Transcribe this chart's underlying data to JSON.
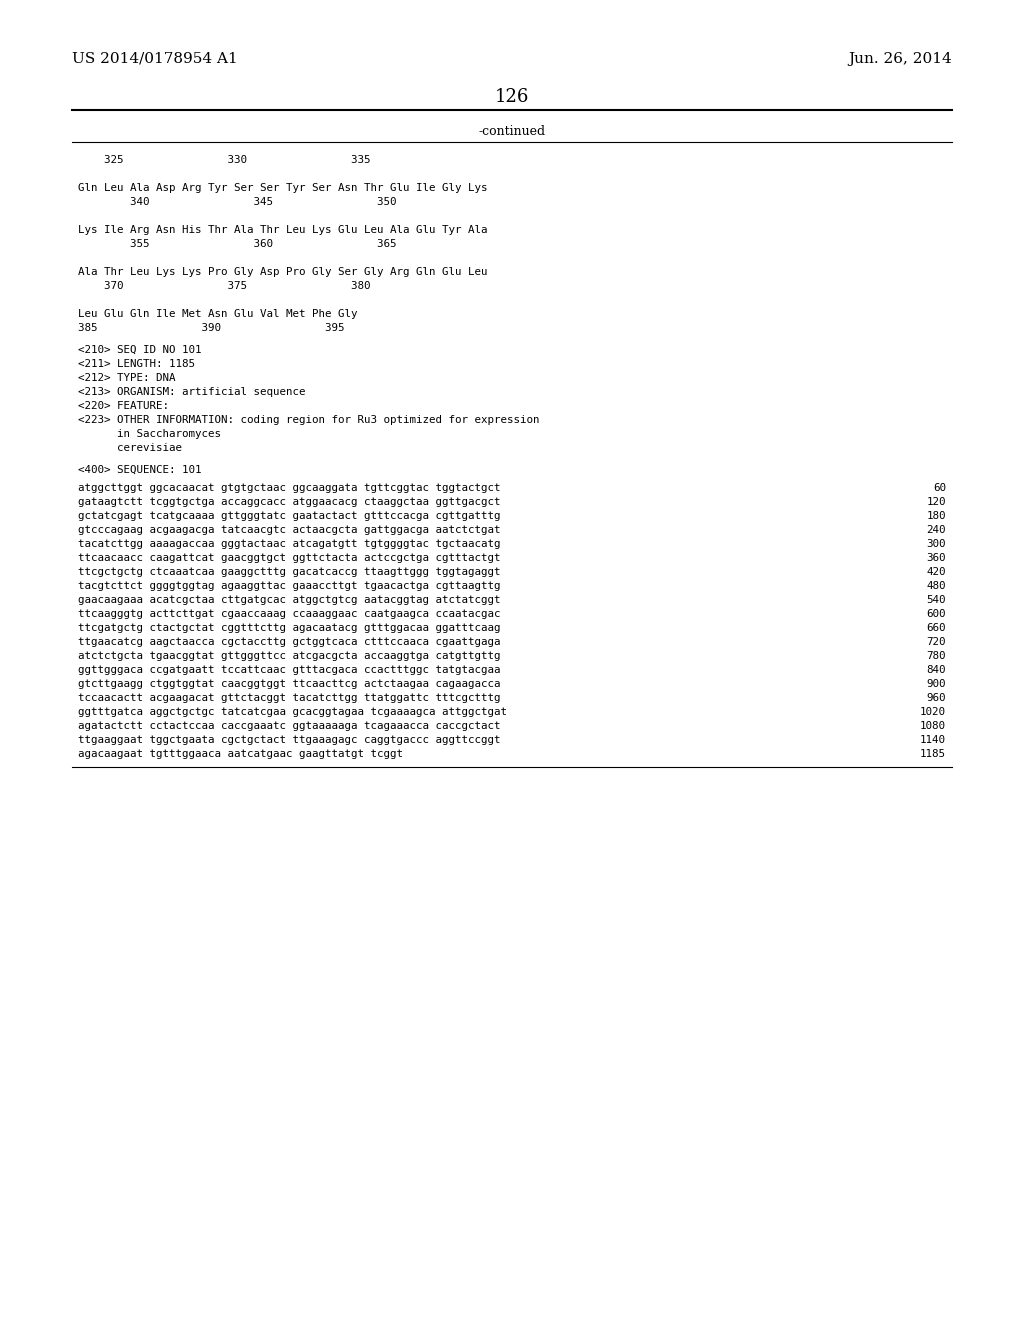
{
  "header_left": "US 2014/0178954 A1",
  "header_right": "Jun. 26, 2014",
  "page_number": "126",
  "continued_label": "-continued",
  "background_color": "#ffffff",
  "text_color": "#000000",
  "font_size_header": 11,
  "font_size_body": 9,
  "font_size_page": 13,
  "sequence_lines": [
    {
      "text": "    325                330                335",
      "indent": 0
    },
    {
      "text": "",
      "indent": 0
    },
    {
      "text": "Gln Leu Ala Asp Arg Tyr Ser Ser Tyr Ser Asn Thr Glu Ile Gly Lys",
      "indent": 0
    },
    {
      "text": "        340                345                350",
      "indent": 0
    },
    {
      "text": "",
      "indent": 0
    },
    {
      "text": "Lys Ile Arg Asn His Thr Ala Thr Leu Lys Glu Leu Ala Glu Tyr Ala",
      "indent": 0
    },
    {
      "text": "        355                360                365",
      "indent": 0
    },
    {
      "text": "",
      "indent": 0
    },
    {
      "text": "Ala Thr Leu Lys Lys Pro Gly Asp Pro Gly Ser Gly Arg Gln Glu Leu",
      "indent": 0
    },
    {
      "text": "    370                375                380",
      "indent": 0
    },
    {
      "text": "",
      "indent": 0
    },
    {
      "text": "Leu Glu Gln Ile Met Asn Glu Val Met Phe Gly",
      "indent": 0
    },
    {
      "text": "385                390                395",
      "indent": 0
    }
  ],
  "metadata_lines": [
    "<210> SEQ ID NO 101",
    "<211> LENGTH: 1185",
    "<212> TYPE: DNA",
    "<213> ORGANISM: artificial sequence",
    "<220> FEATURE:",
    "<223> OTHER INFORMATION: coding region for Ru3 optimized for expression",
    "      in Saccharomyces",
    "      cerevisiae"
  ],
  "sequence_label": "<400> SEQUENCE: 101",
  "dna_lines": [
    {
      "seq": "atggcttggt ggcacaacat gtgtgctaac ggcaaggata tgttcggtac tggtactgct",
      "num": "60"
    },
    {
      "seq": "gataagtctt tcggtgctga accaggcacc atggaacacg ctaaggctaa ggttgacgct",
      "num": "120"
    },
    {
      "seq": "gctatcgagt tcatgcaaaa gttgggtatc gaatactact gtttccacga cgttgatttg",
      "num": "180"
    },
    {
      "seq": "gtcccagaag acgaagacga tatcaacgtc actaacgcta gattggacga aatctctgat",
      "num": "240"
    },
    {
      "seq": "tacatcttgg aaaagaccaa gggtactaac atcagatgtt tgtggggtac tgctaacatg",
      "num": "300"
    },
    {
      "seq": "ttcaacaacc caagattcat gaacggtgct ggttctacta actccgctga cgtttactgt",
      "num": "360"
    },
    {
      "seq": "ttcgctgctg ctcaaatcaa gaaggctttg gacatcaccg ttaagttggg tggtagaggt",
      "num": "420"
    },
    {
      "seq": "tacgtcttct ggggtggtag agaaggttac gaaaccttgt tgaacactga cgttaagttg",
      "num": "480"
    },
    {
      "seq": "gaacaagaaa acatcgctaa cttgatgcac atggctgtcg aatacggtag atctatcggt",
      "num": "540"
    },
    {
      "seq": "ttcaagggtg acttcttgat cgaaccaaag ccaaaggaac caatgaagca ccaatacgac",
      "num": "600"
    },
    {
      "seq": "ttcgatgctg ctactgctat cggtttcttg agacaatacg gtttggacaa ggatttcaag",
      "num": "660"
    },
    {
      "seq": "ttgaacatcg aagctaacca cgctaccttg gctggtcaca ctttccaaca cgaattgaga",
      "num": "720"
    },
    {
      "seq": "atctctgcta tgaacggtat gttgggttcc atcgacgcta accaaggtga catgttgttg",
      "num": "780"
    },
    {
      "seq": "ggttgggaca ccgatgaatt tccattcaac gtttacgaca ccactttggc tatgtacgaa",
      "num": "840"
    },
    {
      "seq": "gtcttgaagg ctggtggtat caacggtggt ttcaacttcg actctaagaa cagaagacca",
      "num": "900"
    },
    {
      "seq": "tccaacactt acgaagacat gttctacggt tacatcttgg ttatggattc tttcgctttg",
      "num": "960"
    },
    {
      "seq": "ggtttgatca aggctgctgc tatcatcgaa gcacggtagaa tcgaaaagca attggctgat",
      "num": "1020"
    },
    {
      "seq": "agatactctt cctactccaa caccgaaatc ggtaaaaaga tcagaaacca caccgctact",
      "num": "1080"
    },
    {
      "seq": "ttgaaggaat tggctgaata cgctgctact ttgaaagagc caggtgaccc aggttccggt",
      "num": "1140"
    },
    {
      "seq": "agacaagaat tgtttggaaca aatcatgaac gaagttatgt tcggt",
      "num": "1185"
    }
  ]
}
